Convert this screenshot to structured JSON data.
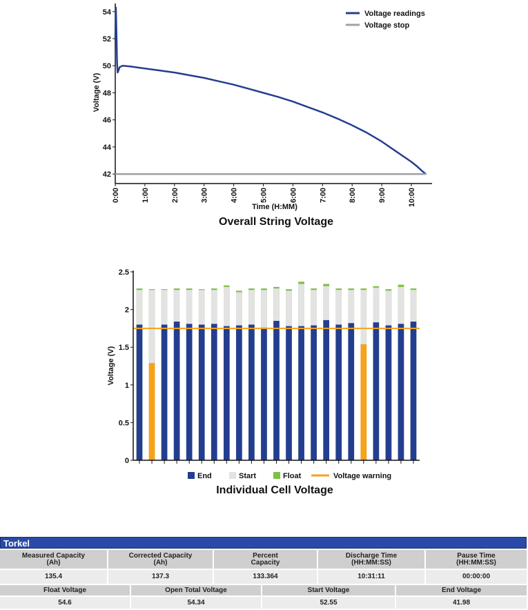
{
  "chart_data": [
    {
      "type": "line",
      "title": "Overall String Voltage",
      "xlabel": "Time (H:MM)",
      "ylabel": "Voltage (V)",
      "xlim": [
        0,
        10.7
      ],
      "ylim": [
        41.5,
        54.6
      ],
      "x_ticks": [
        "0:00",
        "1:00",
        "2:00",
        "3:00",
        "4:00",
        "5:00",
        "6:00",
        "7:00",
        "8:00",
        "9:00",
        "10:00"
      ],
      "y_ticks": [
        42,
        44,
        46,
        48,
        50,
        52,
        54
      ],
      "legend_position": "top-right",
      "series": [
        {
          "name": "Voltage readings",
          "color": "#243e8f",
          "x": [
            0,
            0.02,
            0.04,
            0.06,
            0.08,
            0.1,
            0.15,
            0.25,
            0.5,
            1,
            1.5,
            2,
            2.5,
            3,
            3.5,
            4,
            4.5,
            5,
            5.5,
            6,
            6.5,
            7,
            7.5,
            8,
            8.5,
            9,
            9.5,
            10,
            10.2,
            10.35,
            10.5
          ],
          "y": [
            52.0,
            54.3,
            52.5,
            50.2,
            49.5,
            49.6,
            49.9,
            50.0,
            49.95,
            49.8,
            49.65,
            49.5,
            49.3,
            49.1,
            48.85,
            48.6,
            48.3,
            48.0,
            47.7,
            47.35,
            46.95,
            46.55,
            46.1,
            45.6,
            45.05,
            44.4,
            43.65,
            42.9,
            42.55,
            42.25,
            41.98
          ]
        },
        {
          "name": "Voltage stop",
          "color": "#a0a0a0",
          "x": [
            0,
            10.5
          ],
          "y": [
            42,
            42
          ]
        }
      ]
    },
    {
      "type": "bar",
      "title": "Individual Cell Voltage",
      "ylabel": "Voltage (V)",
      "ylim": [
        0,
        2.5
      ],
      "y_ticks": [
        "0",
        "0.5",
        "1",
        "1.5",
        "2",
        "2.5"
      ],
      "legend_position": "bottom",
      "warning_level": 1.75,
      "series": [
        {
          "name": "End",
          "color": "#243e8f",
          "values": [
            1.8,
            1.29,
            1.8,
            1.84,
            1.81,
            1.8,
            1.81,
            1.78,
            1.79,
            1.8,
            1.76,
            1.85,
            1.78,
            1.78,
            1.79,
            1.86,
            1.8,
            1.82,
            1.54,
            1.83,
            1.79,
            1.81,
            1.84
          ]
        },
        {
          "name": "Start",
          "color": "#e3e3e3",
          "values": [
            2.26,
            2.26,
            2.26,
            2.26,
            2.26,
            2.26,
            2.26,
            2.3,
            2.23,
            2.26,
            2.26,
            2.28,
            2.25,
            2.34,
            2.26,
            2.31,
            2.26,
            2.26,
            2.26,
            2.29,
            2.25,
            2.3,
            2.26
          ]
        },
        {
          "name": "Float",
          "color": "#7cc242",
          "values": [
            2.28,
            2.27,
            2.27,
            2.28,
            2.28,
            2.27,
            2.28,
            2.32,
            2.25,
            2.28,
            2.28,
            2.3,
            2.27,
            2.37,
            2.28,
            2.34,
            2.28,
            2.28,
            2.28,
            2.31,
            2.27,
            2.33,
            2.28
          ]
        },
        {
          "name": "Voltage warning",
          "color": "#f7a21b"
        }
      ]
    }
  ],
  "table": {
    "title": "Torkel",
    "row1_headers": [
      "Measured Capacity\n(Ah)",
      "Corrected Capacity\n(Ah)",
      "Percent\nCapacity",
      "Discharge Time\n(HH:MM:SS)",
      "Pause Time\n(HH:MM:SS)"
    ],
    "row1_values": [
      "135.4",
      "137.3",
      "133.364",
      "10:31:11",
      "00:00:00"
    ],
    "row2_headers": [
      "Float Voltage",
      "Open Total Voltage",
      "Start Voltage",
      "End Voltage"
    ],
    "row2_values": [
      "54.6",
      "54.34",
      "52.55",
      "41.98"
    ]
  }
}
